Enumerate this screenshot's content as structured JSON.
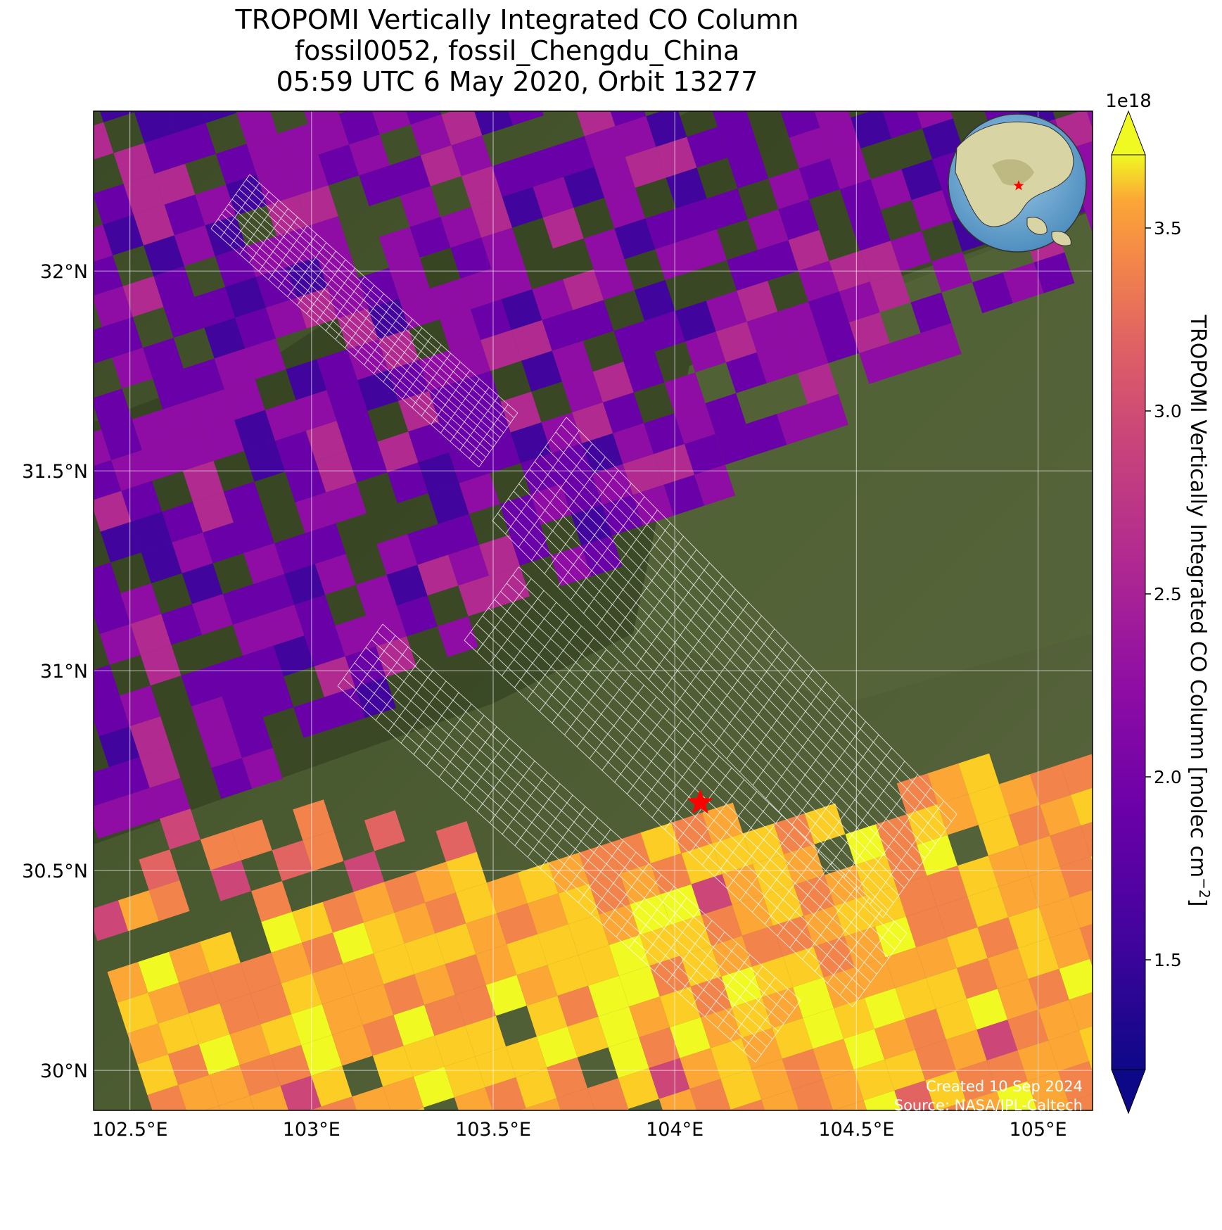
{
  "title": {
    "line1": "TROPOMI Vertically Integrated CO Column",
    "line2": "fossil0052, fossil_Chengdu_China",
    "line3": "05:59 UTC 6 May 2020, Orbit 13277"
  },
  "map": {
    "lon_range": [
      102.4,
      105.15
    ],
    "lat_range": [
      29.9,
      32.4
    ],
    "x_ticks": [
      {
        "value": 102.5,
        "label": "102.5°E"
      },
      {
        "value": 103.0,
        "label": "103°E"
      },
      {
        "value": 103.5,
        "label": "103.5°E"
      },
      {
        "value": 104.0,
        "label": "104°E"
      },
      {
        "value": 104.5,
        "label": "104.5°E"
      },
      {
        "value": 105.0,
        "label": "105°E"
      }
    ],
    "y_ticks": [
      {
        "value": 32.0,
        "label": "32°N"
      },
      {
        "value": 31.5,
        "label": "31.5°N"
      },
      {
        "value": 31.0,
        "label": "31°N"
      },
      {
        "value": 30.5,
        "label": "30.5°N"
      },
      {
        "value": 30.0,
        "label": "30°N"
      }
    ],
    "grid": true,
    "target_marker": {
      "lon": 104.07,
      "lat": 30.67,
      "color": "#ff0000",
      "icon": "star-icon"
    },
    "inset_globe": {
      "placement": "top-right",
      "icon": "globe-icon",
      "marker_color": "#ff0000"
    }
  },
  "colorbar": {
    "label": "TROPOMI Vertically Integrated CO Column [molec cm",
    "label_exponent": "−2",
    "label_close": "]",
    "multiplier": "1e18",
    "range": [
      1.2,
      3.7
    ],
    "ticks": [
      {
        "value": 1.5,
        "label": "1.5"
      },
      {
        "value": 2.0,
        "label": "2.0"
      },
      {
        "value": 2.5,
        "label": "2.5"
      },
      {
        "value": 3.0,
        "label": "3.0"
      },
      {
        "value": 3.5,
        "label": "3.5"
      }
    ],
    "extend": "both",
    "colormap": "plasma"
  },
  "credits": {
    "created": "Created 10 Sep 2024",
    "source": "Source: NASA/JPL-Caltech"
  }
}
